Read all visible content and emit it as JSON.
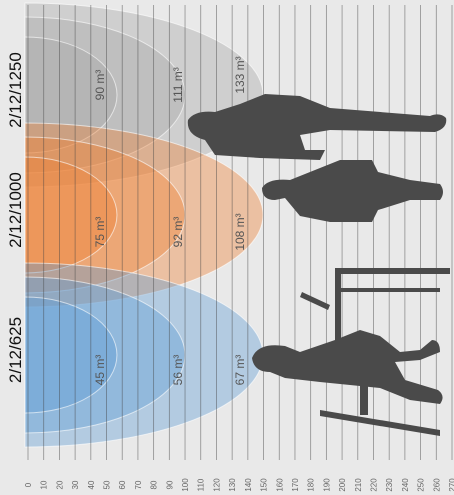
{
  "products": [
    {
      "name": "2/12/1250",
      "volumes": [
        "90 m³",
        "111 m³",
        "133 m³"
      ]
    },
    {
      "name": "2/12/1000",
      "volumes": [
        "75 m³",
        "92 m³",
        "108 m³"
      ]
    },
    {
      "name": "2/12/625",
      "volumes": [
        "45 m³",
        "56 m³",
        "67 m³"
      ]
    }
  ],
  "scale": [
    0,
    10,
    20,
    30,
    40,
    50,
    60,
    70,
    80,
    90,
    100,
    110,
    120,
    130,
    140,
    150,
    160,
    170,
    180,
    190,
    200,
    210,
    220,
    230,
    240,
    250,
    260,
    270
  ]
}
